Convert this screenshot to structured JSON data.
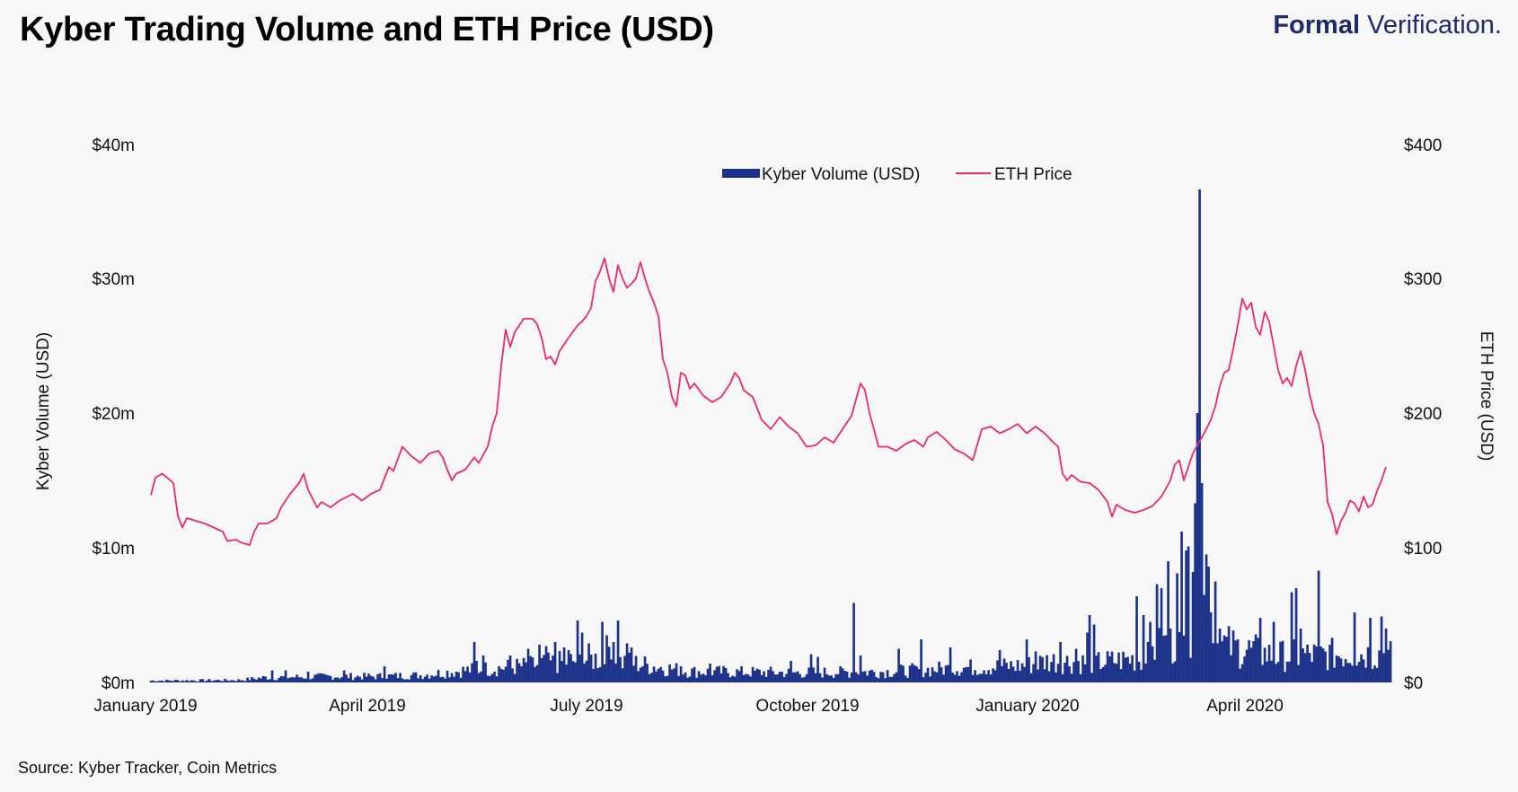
{
  "header": {
    "title": "Kyber Trading Volume and ETH Price (USD)",
    "brand_bold": "Formal",
    "brand_light": "Verification."
  },
  "footer": {
    "source": "Source: Kyber Tracker, Coin Metrics"
  },
  "colors": {
    "volume": "#1b3088",
    "price": "#ea2a6e",
    "background": "#f7f7f7"
  },
  "chart_data": {
    "type": "bar+line",
    "title": "Kyber Trading Volume and ETH Price (USD)",
    "x_range_days": [
      0,
      552
    ],
    "x_ticks": [
      {
        "label": "January 2019",
        "day": 0
      },
      {
        "label": "April 2019",
        "day": 96
      },
      {
        "label": "July 2019",
        "day": 194
      },
      {
        "label": "October 2019",
        "day": 296
      },
      {
        "label": "January 2020",
        "day": 396
      },
      {
        "label": "April 2020",
        "day": 490
      }
    ],
    "y_left": {
      "label": "Kyber Volume (USD)",
      "min": 0,
      "max": 40,
      "unit": "m",
      "ticks": [
        "$0m",
        "$10m",
        "$20m",
        "$30m",
        "$40m"
      ]
    },
    "y_right": {
      "label": "ETH Price (USD)",
      "min": 0,
      "max": 400,
      "ticks": [
        "$0",
        "$100",
        "$200",
        "$300",
        "$400"
      ]
    },
    "legend": [
      "Kyber Volume (USD)",
      "ETH Price"
    ],
    "series": [
      {
        "name": "Kyber Volume (USD)",
        "type": "bar",
        "axis": "left",
        "baseline_anchors": [
          [
            0,
            0.15
          ],
          [
            40,
            0.2
          ],
          [
            50,
            0.4
          ],
          [
            80,
            0.5
          ],
          [
            100,
            0.5
          ],
          [
            120,
            0.6
          ],
          [
            140,
            1.0
          ],
          [
            170,
            1.4
          ],
          [
            200,
            2.0
          ],
          [
            240,
            0.9
          ],
          [
            290,
            0.8
          ],
          [
            330,
            0.9
          ],
          [
            360,
            1.2
          ],
          [
            390,
            1.4
          ],
          [
            400,
            1.8
          ],
          [
            420,
            1.6
          ],
          [
            440,
            2.0
          ],
          [
            450,
            3.0
          ],
          [
            470,
            3.5
          ],
          [
            480,
            3.0
          ],
          [
            500,
            2.2
          ],
          [
            552,
            2.4
          ]
        ],
        "spikes": [
          [
            54,
            0.9
          ],
          [
            60,
            0.9
          ],
          [
            70,
            0.8
          ],
          [
            86,
            0.9
          ],
          [
            104,
            1.2
          ],
          [
            144,
            3.0
          ],
          [
            145,
            1.6
          ],
          [
            148,
            2.0
          ],
          [
            160,
            2.0
          ],
          [
            168,
            2.5
          ],
          [
            173,
            2.8
          ],
          [
            176,
            2.7
          ],
          [
            180,
            3.0
          ],
          [
            184,
            2.6
          ],
          [
            186,
            2.4
          ],
          [
            190,
            4.6
          ],
          [
            192,
            3.7
          ],
          [
            195,
            2.9
          ],
          [
            201,
            4.5
          ],
          [
            203,
            3.5
          ],
          [
            206,
            3.0
          ],
          [
            208,
            4.6
          ],
          [
            212,
            2.9
          ],
          [
            214,
            2.6
          ],
          [
            236,
            1.2
          ],
          [
            249,
            1.4
          ],
          [
            285,
            1.6
          ],
          [
            294,
            2.1
          ],
          [
            297,
            1.9
          ],
          [
            313,
            5.9
          ],
          [
            316,
            2.0
          ],
          [
            333,
            2.5
          ],
          [
            343,
            3.2
          ],
          [
            356,
            2.6
          ],
          [
            378,
            2.4
          ],
          [
            390,
            3.2
          ],
          [
            394,
            2.3
          ],
          [
            405,
            3.0
          ],
          [
            412,
            2.5
          ],
          [
            417,
            3.7
          ],
          [
            418,
            2.4
          ],
          [
            439,
            6.4
          ],
          [
            442,
            5.0
          ],
          [
            444,
            3.0
          ],
          [
            452,
            3.5
          ],
          [
            454,
            4.0
          ],
          [
            462,
            3.3
          ],
          [
            465,
            4.5
          ],
          [
            469,
            6.5
          ],
          [
            472,
            5.2
          ],
          [
            476,
            4.0
          ],
          [
            480,
            3.2
          ],
          [
            494,
            4.8
          ],
          [
            500,
            4.5
          ],
          [
            508,
            6.7
          ],
          [
            510,
            7.0
          ],
          [
            512,
            4.0
          ],
          [
            520,
            8.3
          ],
          [
            536,
            5.2
          ],
          [
            543,
            4.8
          ],
          [
            548,
            4.9
          ],
          [
            550,
            4.0
          ],
          [
            418,
            5.0
          ],
          [
            420,
            4.3
          ],
          [
            445,
            4.5
          ]
        ],
        "peak_spikes": [
          [
            467,
            36.6
          ],
          [
            466,
            20.0
          ],
          [
            468,
            14.8
          ],
          [
            465,
            13.3
          ],
          [
            470,
            9.5
          ],
          [
            462,
            10.1
          ],
          [
            459,
            11.2
          ],
          [
            448,
            7.3
          ],
          [
            450,
            5.8
          ],
          [
            453,
            9.0
          ],
          [
            457,
            8.1
          ],
          [
            464,
            8.2
          ],
          [
            471,
            8.6
          ],
          [
            474,
            7.5
          ],
          [
            450,
            7.0
          ],
          [
            461,
            9.8
          ]
        ]
      },
      {
        "name": "ETH Price",
        "type": "line",
        "axis": "right",
        "points": [
          [
            0,
            139
          ],
          [
            2,
            152
          ],
          [
            5,
            155
          ],
          [
            8,
            151
          ],
          [
            10,
            148
          ],
          [
            12,
            124
          ],
          [
            14,
            115
          ],
          [
            16,
            122
          ],
          [
            20,
            120
          ],
          [
            24,
            118
          ],
          [
            28,
            115
          ],
          [
            32,
            112
          ],
          [
            34,
            105
          ],
          [
            38,
            106
          ],
          [
            40,
            104
          ],
          [
            44,
            102
          ],
          [
            46,
            112
          ],
          [
            48,
            118
          ],
          [
            52,
            118
          ],
          [
            56,
            122
          ],
          [
            58,
            130
          ],
          [
            62,
            140
          ],
          [
            66,
            148
          ],
          [
            68,
            155
          ],
          [
            70,
            143
          ],
          [
            74,
            130
          ],
          [
            76,
            134
          ],
          [
            80,
            130
          ],
          [
            84,
            135
          ],
          [
            90,
            140
          ],
          [
            94,
            135
          ],
          [
            98,
            140
          ],
          [
            102,
            143
          ],
          [
            106,
            160
          ],
          [
            108,
            157
          ],
          [
            112,
            175
          ],
          [
            116,
            168
          ],
          [
            120,
            163
          ],
          [
            124,
            170
          ],
          [
            128,
            172
          ],
          [
            130,
            167
          ],
          [
            132,
            158
          ],
          [
            134,
            150
          ],
          [
            136,
            155
          ],
          [
            140,
            158
          ],
          [
            144,
            167
          ],
          [
            146,
            163
          ],
          [
            150,
            175
          ],
          [
            152,
            190
          ],
          [
            154,
            200
          ],
          [
            156,
            235
          ],
          [
            158,
            262
          ],
          [
            160,
            249
          ],
          [
            162,
            260
          ],
          [
            166,
            270
          ],
          [
            170,
            270
          ],
          [
            172,
            266
          ],
          [
            174,
            256
          ],
          [
            176,
            240
          ],
          [
            178,
            242
          ],
          [
            180,
            236
          ],
          [
            182,
            246
          ],
          [
            186,
            256
          ],
          [
            190,
            265
          ],
          [
            192,
            268
          ],
          [
            194,
            272
          ],
          [
            196,
            278
          ],
          [
            198,
            298
          ],
          [
            200,
            305
          ],
          [
            202,
            315
          ],
          [
            204,
            300
          ],
          [
            206,
            290
          ],
          [
            208,
            310
          ],
          [
            210,
            300
          ],
          [
            212,
            293
          ],
          [
            214,
            296
          ],
          [
            216,
            300
          ],
          [
            218,
            312
          ],
          [
            220,
            300
          ],
          [
            222,
            290
          ],
          [
            224,
            282
          ],
          [
            226,
            272
          ],
          [
            228,
            240
          ],
          [
            230,
            230
          ],
          [
            232,
            212
          ],
          [
            234,
            205
          ],
          [
            236,
            230
          ],
          [
            238,
            228
          ],
          [
            240,
            218
          ],
          [
            242,
            222
          ],
          [
            246,
            213
          ],
          [
            250,
            208
          ],
          [
            254,
            212
          ],
          [
            258,
            222
          ],
          [
            260,
            230
          ],
          [
            262,
            226
          ],
          [
            264,
            217
          ],
          [
            268,
            212
          ],
          [
            272,
            195
          ],
          [
            276,
            188
          ],
          [
            280,
            197
          ],
          [
            284,
            190
          ],
          [
            288,
            185
          ],
          [
            292,
            175
          ],
          [
            296,
            176
          ],
          [
            300,
            182
          ],
          [
            304,
            178
          ],
          [
            308,
            188
          ],
          [
            312,
            198
          ],
          [
            314,
            210
          ],
          [
            316,
            222
          ],
          [
            318,
            217
          ],
          [
            320,
            200
          ],
          [
            322,
            188
          ],
          [
            324,
            175
          ],
          [
            328,
            175
          ],
          [
            332,
            172
          ],
          [
            336,
            177
          ],
          [
            340,
            180
          ],
          [
            344,
            175
          ],
          [
            346,
            182
          ],
          [
            350,
            186
          ],
          [
            354,
            180
          ],
          [
            358,
            173
          ],
          [
            362,
            170
          ],
          [
            366,
            165
          ],
          [
            370,
            188
          ],
          [
            374,
            190
          ],
          [
            378,
            185
          ],
          [
            382,
            188
          ],
          [
            386,
            192
          ],
          [
            390,
            185
          ],
          [
            394,
            190
          ],
          [
            398,
            185
          ],
          [
            402,
            178
          ],
          [
            404,
            175
          ],
          [
            406,
            155
          ],
          [
            408,
            150
          ],
          [
            410,
            154
          ],
          [
            414,
            149
          ],
          [
            418,
            148
          ],
          [
            422,
            143
          ],
          [
            426,
            134
          ],
          [
            428,
            123
          ],
          [
            430,
            132
          ],
          [
            434,
            128
          ],
          [
            438,
            126
          ],
          [
            442,
            128
          ],
          [
            446,
            131
          ],
          [
            450,
            138
          ],
          [
            454,
            150
          ],
          [
            456,
            162
          ],
          [
            458,
            165
          ],
          [
            460,
            150
          ],
          [
            462,
            160
          ],
          [
            464,
            170
          ],
          [
            468,
            182
          ],
          [
            470,
            188
          ],
          [
            472,
            195
          ],
          [
            474,
            205
          ],
          [
            476,
            220
          ],
          [
            478,
            230
          ],
          [
            480,
            232
          ],
          [
            482,
            248
          ],
          [
            484,
            265
          ],
          [
            486,
            285
          ],
          [
            488,
            277
          ],
          [
            490,
            282
          ],
          [
            492,
            264
          ],
          [
            494,
            258
          ],
          [
            496,
            275
          ],
          [
            498,
            268
          ],
          [
            500,
            250
          ],
          [
            502,
            232
          ],
          [
            504,
            222
          ],
          [
            506,
            226
          ],
          [
            508,
            220
          ],
          [
            510,
            235
          ],
          [
            512,
            246
          ],
          [
            514,
            232
          ],
          [
            516,
            214
          ],
          [
            518,
            200
          ],
          [
            520,
            192
          ],
          [
            522,
            176
          ],
          [
            524,
            134
          ],
          [
            526,
            125
          ],
          [
            528,
            110
          ],
          [
            530,
            120
          ],
          [
            532,
            126
          ],
          [
            534,
            135
          ],
          [
            536,
            133
          ],
          [
            538,
            127
          ],
          [
            540,
            138
          ],
          [
            542,
            130
          ],
          [
            544,
            132
          ],
          [
            546,
            142
          ],
          [
            548,
            150
          ],
          [
            550,
            160
          ]
        ]
      }
    ]
  }
}
